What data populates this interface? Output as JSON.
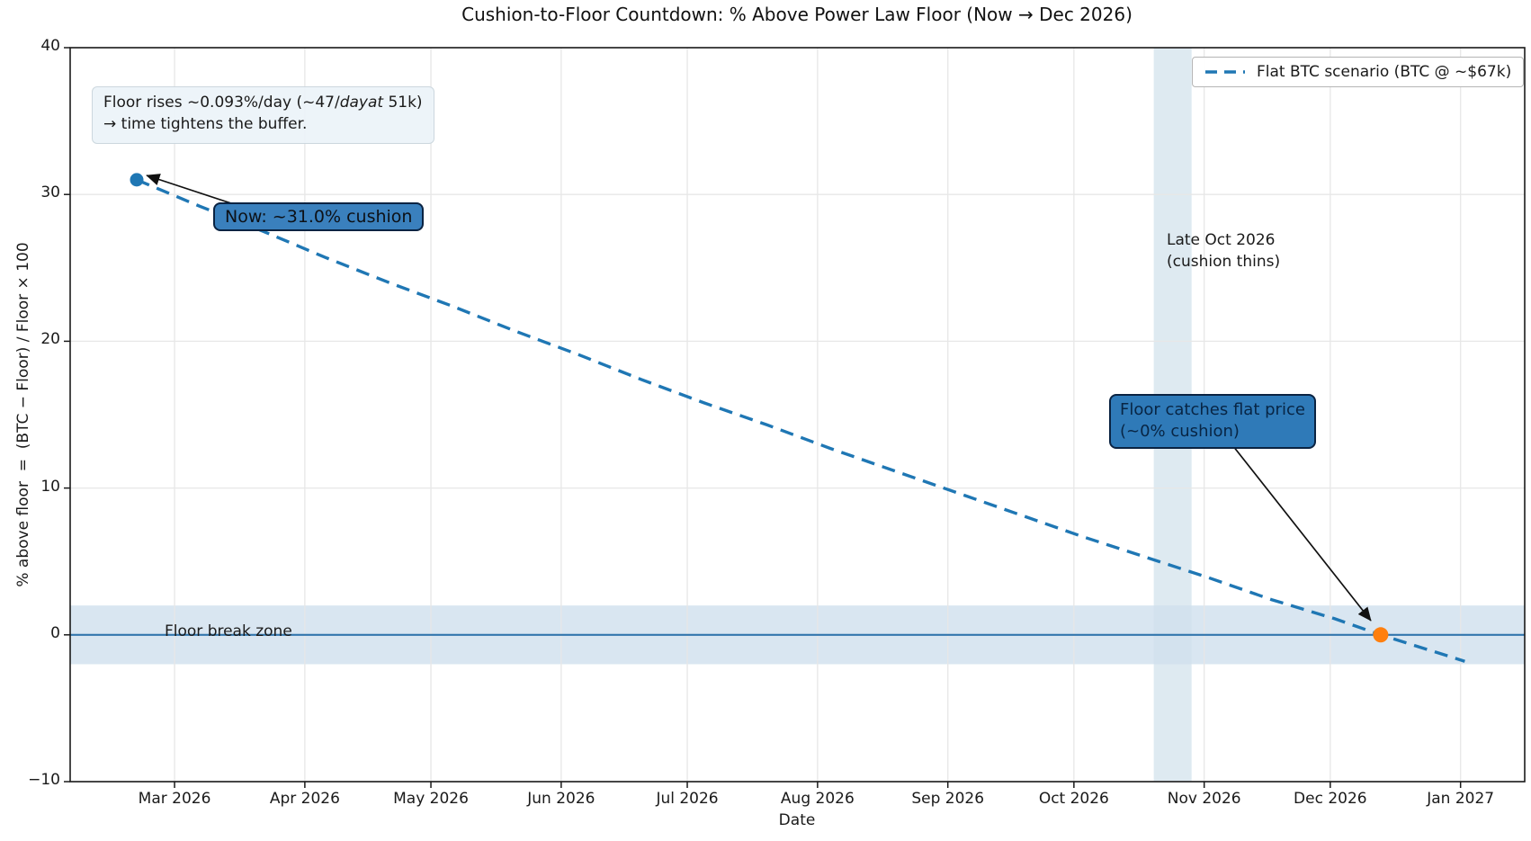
{
  "chart_data": {
    "type": "line",
    "title": "Cushion-to-Floor Countdown: % Above Power Law Floor (Now → Dec 2026)",
    "xlabel": "Date",
    "ylabel": "% above floor  =  (BTC − Floor) / Floor × 100",
    "ylim": [
      -10,
      40
    ],
    "yticks": [
      40,
      30,
      20,
      10,
      0,
      -10
    ],
    "xticks": [
      {
        "label": "Mar 2026",
        "day": 9
      },
      {
        "label": "Apr 2026",
        "day": 40
      },
      {
        "label": "May 2026",
        "day": 70
      },
      {
        "label": "Jun 2026",
        "day": 101
      },
      {
        "label": "Jul 2026",
        "day": 131
      },
      {
        "label": "Aug 2026",
        "day": 162
      },
      {
        "label": "Sep 2026",
        "day": 193
      },
      {
        "label": "Oct 2026",
        "day": 223
      },
      {
        "label": "Nov 2026",
        "day": 254
      },
      {
        "label": "Dec 2026",
        "day": 284
      },
      {
        "label": "Jan 2027",
        "day": 315
      }
    ],
    "grid": true,
    "legend": {
      "position": "upper right",
      "entries": [
        {
          "label": "Flat BTC scenario (BTC @ ~$67k)",
          "color": "#1f77b4",
          "dash": true
        }
      ]
    },
    "series": [
      {
        "name": "Flat BTC scenario (BTC @ ~$67k)",
        "color": "#1f77b4",
        "style": "dashed",
        "points": [
          [
            0,
            31.0
          ],
          [
            15,
            29.2
          ],
          [
            30,
            27.5
          ],
          [
            45,
            25.7
          ],
          [
            60,
            24.0
          ],
          [
            75,
            22.4
          ],
          [
            90,
            20.7
          ],
          [
            105,
            19.1
          ],
          [
            120,
            17.4
          ],
          [
            135,
            15.8
          ],
          [
            150,
            14.3
          ],
          [
            165,
            12.7
          ],
          [
            180,
            11.2
          ],
          [
            195,
            9.7
          ],
          [
            210,
            8.2
          ],
          [
            225,
            6.7
          ],
          [
            240,
            5.3
          ],
          [
            255,
            3.9
          ],
          [
            270,
            2.4
          ],
          [
            285,
            1.1
          ],
          [
            296,
            0.0
          ],
          [
            316,
            -1.8
          ]
        ]
      }
    ],
    "markers": [
      {
        "name": "now-point",
        "day": 0,
        "value": 31.0,
        "color": "#1f77b4"
      },
      {
        "name": "zero-cross-point",
        "day": 296,
        "value": 0.0,
        "color": "#ff7f0e"
      }
    ],
    "bands": {
      "horizontal": {
        "from": -2,
        "to": 2,
        "color": "#cfe0ee",
        "label": "Floor break zone"
      },
      "vertical": {
        "from_day": 242,
        "to_day": 251,
        "color": "#d8e6ee",
        "label": "Late Oct 2026"
      }
    },
    "zero_line": {
      "y": 0,
      "color": "#3276ad"
    }
  },
  "annotations": {
    "floor_rise_line1_pre": "Floor rises ~0.093%/day (~47/",
    "floor_rise_line1_italic": "dayat",
    "floor_rise_line1_post": " 51k)",
    "floor_rise_line2": "→ time tightens the buffer.",
    "now_label": "Now: ~31.0% cushion",
    "late_oct_line1": "Late Oct 2026",
    "late_oct_line2": "(cushion thins)",
    "catch_line1": "Floor catches flat price",
    "catch_line2": "(~0% cushion)",
    "floor_break_label": "Floor break zone"
  }
}
